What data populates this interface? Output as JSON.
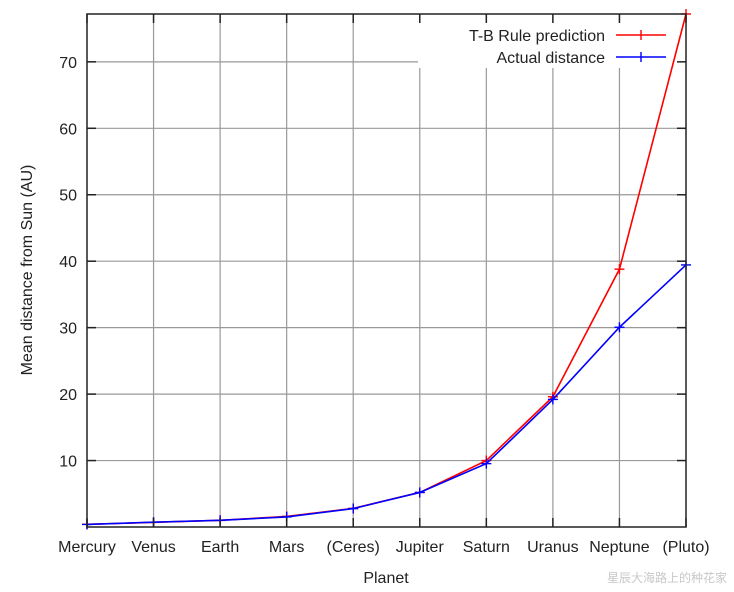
{
  "chart_data": {
    "type": "line",
    "title": "",
    "xlabel": "Planet",
    "ylabel": "Mean distance from Sun (AU)",
    "categories": [
      "Mercury",
      "Venus",
      "Earth",
      "Mars",
      "(Ceres)",
      "Jupiter",
      "Saturn",
      "Uranus",
      "Neptune",
      "(Pluto)"
    ],
    "yticks": [
      10,
      20,
      30,
      40,
      50,
      60,
      70
    ],
    "ylim": [
      0,
      77.2
    ],
    "grid": true,
    "legend_position": "top-right",
    "series": [
      {
        "name": "T-B Rule prediction",
        "color": "#ff0000",
        "values": [
          0.4,
          0.7,
          1.0,
          1.6,
          2.8,
          5.2,
          10.0,
          19.6,
          38.8,
          77.2
        ]
      },
      {
        "name": "Actual distance",
        "color": "#0000ff",
        "values": [
          0.39,
          0.72,
          1.0,
          1.52,
          2.77,
          5.2,
          9.54,
          19.2,
          30.06,
          39.44
        ]
      }
    ]
  },
  "legend": {
    "items": [
      {
        "label": "T-B Rule prediction",
        "color": "#ff0000"
      },
      {
        "label": "Actual distance",
        "color": "#0000ff"
      }
    ]
  },
  "watermark": "星辰大海路上的种花家"
}
